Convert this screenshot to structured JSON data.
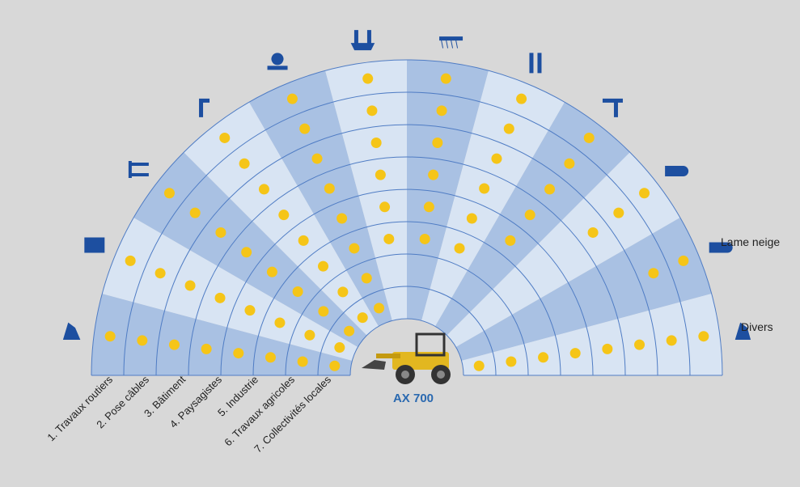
{
  "model": "AX 700",
  "categories": [
    "1. Travaux routiers",
    "2. Pose câbles",
    "3. Bâtiment",
    "4. Paysagistes",
    "5. Industrie",
    "6. Travaux agricoles",
    "7. Collectivités locales"
  ],
  "side_labels": {
    "snow": "Lame neige",
    "misc": "Divers"
  },
  "sectors": [
    {
      "icon": "bucket-icon"
    },
    {
      "icon": "snow-blade-icon"
    },
    {
      "icon": "pallet-fork-icon"
    },
    {
      "icon": "crane-hook-icon"
    },
    {
      "icon": "sweeper-icon"
    },
    {
      "icon": "grab-bucket-icon"
    },
    {
      "icon": "manure-fork-icon"
    },
    {
      "icon": "bale-clamp-icon"
    },
    {
      "icon": "auger-drill-icon"
    },
    {
      "icon": "root-grapple-icon"
    },
    {
      "icon": "snow-blade-right-icon"
    },
    {
      "icon": "misc-tool-icon"
    }
  ],
  "colors": {
    "dark_band": "#a9c1e3",
    "light_band": "#d8e4f3",
    "ring_line": "#4f7cc4",
    "dot": "#f5c518",
    "icon": "#1d4fa0"
  }
}
